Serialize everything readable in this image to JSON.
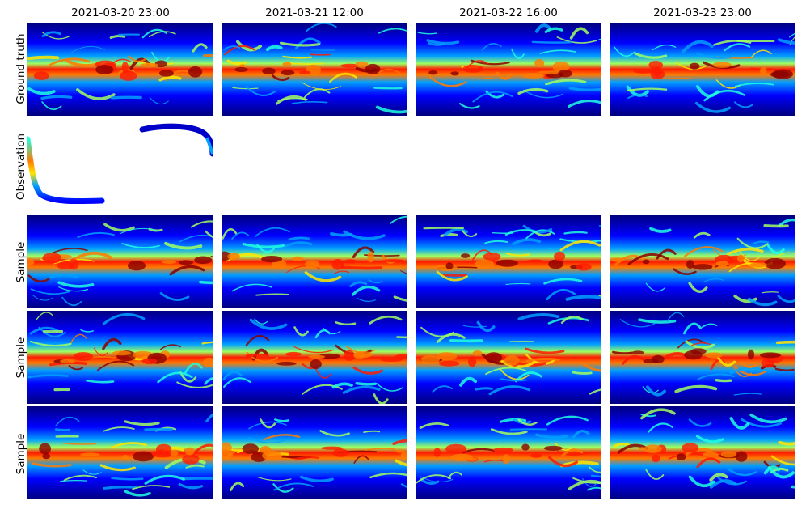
{
  "columns": [
    "2021-03-20 23:00",
    "2021-03-21 12:00",
    "2021-03-22 16:00",
    "2021-03-23 23:00"
  ],
  "rows": [
    {
      "label": "Ground truth",
      "kind": "field"
    },
    {
      "label": "Observation",
      "kind": "observation"
    },
    {
      "label": "Sample",
      "kind": "field"
    },
    {
      "label": "Sample",
      "kind": "field"
    },
    {
      "label": "Sample",
      "kind": "field"
    }
  ],
  "colormap": {
    "name": "jet",
    "stops": [
      "#00007f",
      "#0000ff",
      "#00a0ff",
      "#1fffe0",
      "#a0ff60",
      "#ffe600",
      "#ff7a00",
      "#ff1a00",
      "#8b0000"
    ]
  }
}
